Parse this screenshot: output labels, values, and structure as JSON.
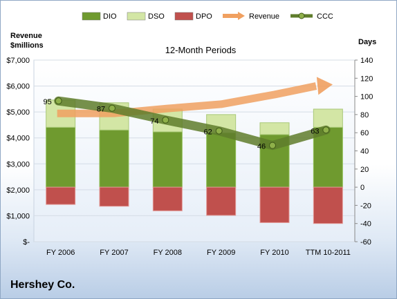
{
  "company_label": "Hershey Co.",
  "chart_data": {
    "type": "bar",
    "title": "12-Month Periods",
    "categories": [
      "FY 2006",
      "FY 2007",
      "FY 2008",
      "FY 2009",
      "FY 2010",
      "TTM 10-2011"
    ],
    "y_left": {
      "label_line1": "Revenue",
      "label_line2": "$millions",
      "ylim": [
        0,
        7000
      ],
      "ticks": [
        0,
        1000,
        2000,
        3000,
        4000,
        5000,
        6000,
        7000
      ],
      "tick_labels": [
        "$-",
        "$1,000",
        "$2,000",
        "$3,000",
        "$4,000",
        "$5,000",
        "$6,000",
        "$7,000"
      ]
    },
    "y_right": {
      "label": "Days",
      "ylim": [
        -60,
        140
      ],
      "ticks": [
        -60,
        -40,
        -20,
        0,
        20,
        40,
        60,
        80,
        100,
        120,
        140
      ],
      "tick_labels": [
        "-60",
        "-40",
        "-20",
        "0",
        "20",
        "40",
        "60",
        "80",
        "100",
        "120",
        "140"
      ]
    },
    "legend": {
      "placement": "top",
      "entries": [
        "DIO",
        "DSO",
        "DPO",
        "Revenue",
        "CCC"
      ]
    },
    "series": [
      {
        "name": "DIO",
        "axis": "right",
        "type": "bar-stacked",
        "color": "#6f9a2f",
        "values": [
          66,
          63,
          61,
          60,
          58,
          66
        ]
      },
      {
        "name": "DSO",
        "axis": "right",
        "type": "bar-stacked",
        "color": "#d3e6a5",
        "values": [
          30,
          30,
          25,
          20,
          13,
          20
        ]
      },
      {
        "name": "DPO",
        "axis": "right",
        "type": "bar-negative",
        "color": "#c0504d",
        "values": [
          -19,
          -21,
          -26,
          -31,
          -39,
          -40
        ]
      },
      {
        "name": "Revenue",
        "axis": "left",
        "type": "line-arrow",
        "color": "#f0a060",
        "values": [
          4944,
          4946,
          5133,
          5299,
          5671,
          6000
        ]
      },
      {
        "name": "CCC",
        "axis": "right",
        "type": "line-markers",
        "color": "#5f7d2c",
        "values": [
          95,
          87,
          74,
          62,
          46,
          63
        ]
      }
    ],
    "data_labels": [
      "95",
      "87",
      "74",
      "62",
      "46",
      "63"
    ]
  }
}
